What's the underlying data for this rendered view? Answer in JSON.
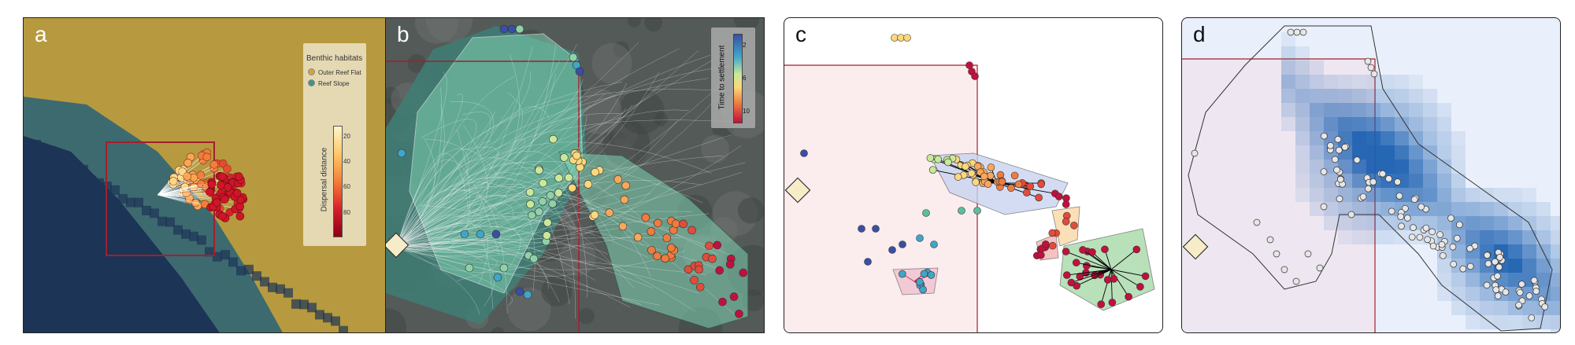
{
  "panels": {
    "a": {
      "label": "a"
    },
    "b": {
      "label": "b"
    },
    "c": {
      "label": "c"
    },
    "d": {
      "label": "d"
    }
  },
  "legend_a": {
    "title": "Benthic habitats",
    "items": [
      {
        "label": "Outer Reef Flat",
        "color": "#d9a33b"
      },
      {
        "label": "Reef Slope",
        "color": "#4a8e86"
      }
    ],
    "colorbar_title": "Dispersal distance",
    "ticks": [
      "20",
      "40",
      "60",
      "80"
    ]
  },
  "legend_b": {
    "colorbar_title": "Time to settlement",
    "ticks": [
      "2",
      "6",
      "10"
    ]
  },
  "colors": {
    "sand": "#b79a3f",
    "shallow": "#3d6a6f",
    "deep": "#1c3456",
    "box": "#a31f2a",
    "hull": "#7fd1b1",
    "source": "#f6ecc8"
  }
}
